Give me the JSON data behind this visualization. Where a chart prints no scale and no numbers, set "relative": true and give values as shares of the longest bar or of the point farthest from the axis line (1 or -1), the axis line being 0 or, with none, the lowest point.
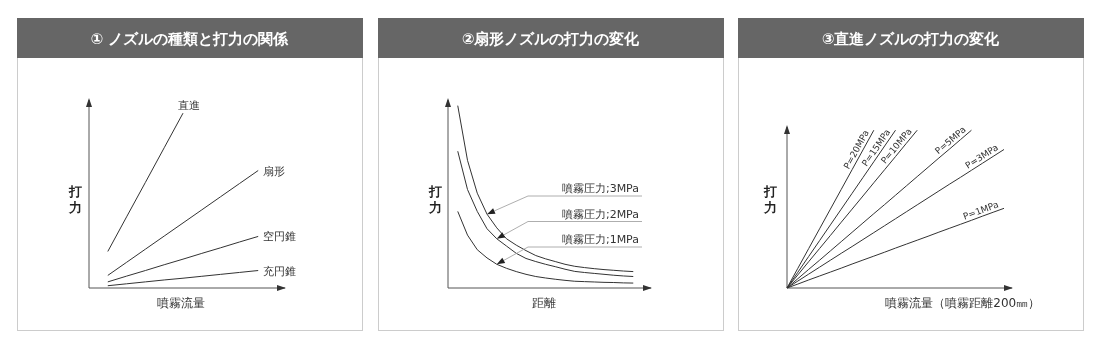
{
  "chart_data": [
    {
      "type": "line",
      "title": "① ノズルの種類と打力の関係",
      "xlabel": "噴霧流量",
      "ylabel": "打力",
      "relative": true,
      "marker": "none",
      "line_style": "solid",
      "categories": [
        null,
        null,
        null,
        null,
        null,
        null,
        null,
        null,
        null,
        null,
        null
      ],
      "series": [
        {
          "name": "直進",
          "color": "#333333",
          "values": [
            null,
            0.209,
            0.407,
            0.604,
            0.802,
            1.0,
            null,
            null,
            null,
            null,
            null
          ]
        },
        {
          "name": "扇形",
          "color": "#333333",
          "values": [
            null,
            0.072,
            0.147,
            0.222,
            0.297,
            0.372,
            0.447,
            0.522,
            0.597,
            0.672,
            null
          ]
        },
        {
          "name": "空円錐",
          "color": "#333333",
          "values": [
            null,
            0.035,
            0.068,
            0.1,
            0.133,
            0.165,
            0.198,
            0.23,
            0.263,
            0.295,
            null
          ]
        },
        {
          "name": "充円錐",
          "color": "#333333",
          "values": [
            null,
            0.013,
            0.024,
            0.035,
            0.046,
            0.056,
            0.067,
            0.078,
            0.089,
            0.1,
            null
          ]
        }
      ]
    },
    {
      "type": "line",
      "title": "②扇形ノズルの打力の変化",
      "xlabel": "距離",
      "ylabel": "打力",
      "relative": true,
      "marker": "none",
      "line_style": "solid",
      "categories": [
        null,
        null,
        null,
        null,
        null,
        null,
        null,
        null,
        null,
        null,
        null,
        null,
        null,
        null,
        null,
        null,
        null,
        null,
        null,
        null,
        null
      ],
      "series": [
        {
          "color": "#333333",
          "values": [
            null,
            1.0,
            0.7,
            0.52,
            0.405,
            0.33,
            0.27,
            0.235,
            0.205,
            0.178,
            0.16,
            0.145,
            0.13,
            0.119,
            0.112,
            0.106,
            0.101,
            0.097,
            0.093,
            0.09,
            null
          ]
        },
        {
          "color": "#333333",
          "values": [
            null,
            0.75,
            0.54,
            0.42,
            0.325,
            0.27,
            0.23,
            0.19,
            0.162,
            0.145,
            0.13,
            0.117,
            0.103,
            0.091,
            0.085,
            0.08,
            0.075,
            0.07,
            0.066,
            0.063,
            null
          ]
        },
        {
          "color": "#333333",
          "values": [
            null,
            0.42,
            0.29,
            0.21,
            0.165,
            0.13,
            0.108,
            0.09,
            0.075,
            0.063,
            0.055,
            0.048,
            0.042,
            0.037,
            0.035,
            0.033,
            0.031,
            0.03,
            0.028,
            0.027,
            null
          ]
        }
      ],
      "annotations": [
        "噴霧圧力;3MPa",
        "噴霧圧力;2MPa",
        "噴霧圧力;1MPa"
      ]
    },
    {
      "type": "line",
      "title": "③直進ノズルの打力の変化",
      "xlabel": "噴霧流量（噴霧距離200㎜）",
      "ylabel": "打力",
      "relative": true,
      "marker": "none",
      "line_style": "solid",
      "categories": [
        null,
        null,
        null,
        null,
        null,
        null,
        null,
        null,
        null,
        null,
        null,
        null,
        null,
        null,
        null,
        null,
        null,
        null,
        null,
        null,
        null
      ],
      "series": [
        {
          "name": "P=20MPa",
          "color": "#333333",
          "values": [
            0,
            0.125,
            0.25,
            0.375,
            0.5,
            0.625,
            0.75,
            0.875,
            1.0,
            null,
            null,
            null,
            null,
            null,
            null,
            null,
            null,
            null,
            null,
            null,
            null
          ]
        },
        {
          "name": "P=15MPa",
          "color": "#333333",
          "values": [
            0,
            0.1,
            0.2,
            0.3,
            0.4,
            0.5,
            0.6,
            0.7,
            0.8,
            0.9,
            1.0,
            null,
            null,
            null,
            null,
            null,
            null,
            null,
            null,
            null,
            null
          ]
        },
        {
          "name": "P=10MPa",
          "color": "#333333",
          "values": [
            0,
            0.083,
            0.167,
            0.25,
            0.333,
            0.417,
            0.5,
            0.583,
            0.667,
            0.75,
            0.833,
            0.917,
            1.0,
            null,
            null,
            null,
            null,
            null,
            null,
            null,
            null
          ]
        },
        {
          "name": "P=5MPa",
          "color": "#333333",
          "values": [
            0,
            0.059,
            0.118,
            0.176,
            0.235,
            0.294,
            0.353,
            0.412,
            0.471,
            0.529,
            0.588,
            0.647,
            0.706,
            0.765,
            0.824,
            0.882,
            0.941,
            1.0,
            null,
            null,
            null
          ]
        },
        {
          "name": "P=3MPa",
          "color": "#333333",
          "values": [
            0,
            0.044,
            0.088,
            0.132,
            0.176,
            0.22,
            0.263,
            0.307,
            0.351,
            0.395,
            0.439,
            0.483,
            0.527,
            0.571,
            0.615,
            0.659,
            0.702,
            0.746,
            0.79,
            0.834,
            0.878
          ]
        },
        {
          "name": "P=1MPa",
          "color": "#333333",
          "values": [
            0,
            0.025,
            0.051,
            0.076,
            0.101,
            0.126,
            0.152,
            0.177,
            0.202,
            0.227,
            0.253,
            0.278,
            0.303,
            0.328,
            0.354,
            0.379,
            0.404,
            0.429,
            0.455,
            0.48,
            0.505
          ]
        }
      ]
    }
  ]
}
